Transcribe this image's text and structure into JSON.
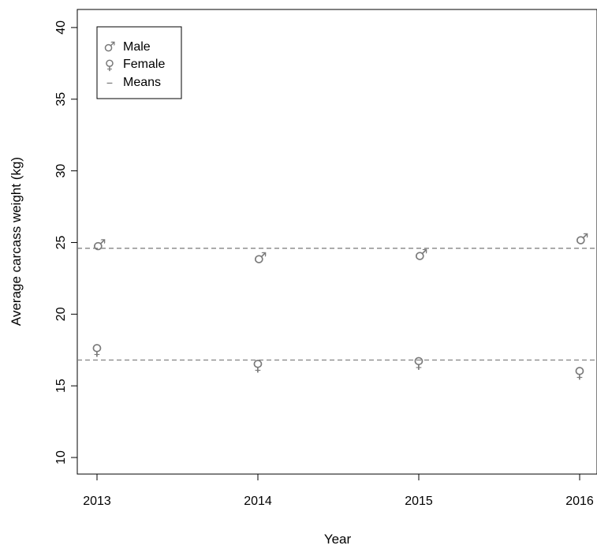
{
  "chart_data": {
    "type": "scatter",
    "xlabel": "Year",
    "ylabel": "Average carcass weight (kg)",
    "categories": [
      "2013",
      "2014",
      "2015",
      "2016"
    ],
    "yticks": [
      "10",
      "15",
      "20",
      "25",
      "30",
      "35",
      "40"
    ],
    "ylim": [
      9,
      41
    ],
    "grid": false,
    "legend_position": "top-left",
    "series": [
      {
        "name": "Male",
        "symbol": "♂",
        "values": [
          24.7,
          23.8,
          24.0,
          25.1
        ],
        "color": "#7a7a7a"
      },
      {
        "name": "Female",
        "symbol": "♀",
        "values": [
          17.6,
          16.5,
          16.7,
          16.0
        ],
        "color": "#7a7a7a"
      }
    ],
    "means": {
      "name": "Means",
      "symbol": "–",
      "values": [
        24.6,
        16.8
      ],
      "color": "#7a7a7a"
    }
  }
}
